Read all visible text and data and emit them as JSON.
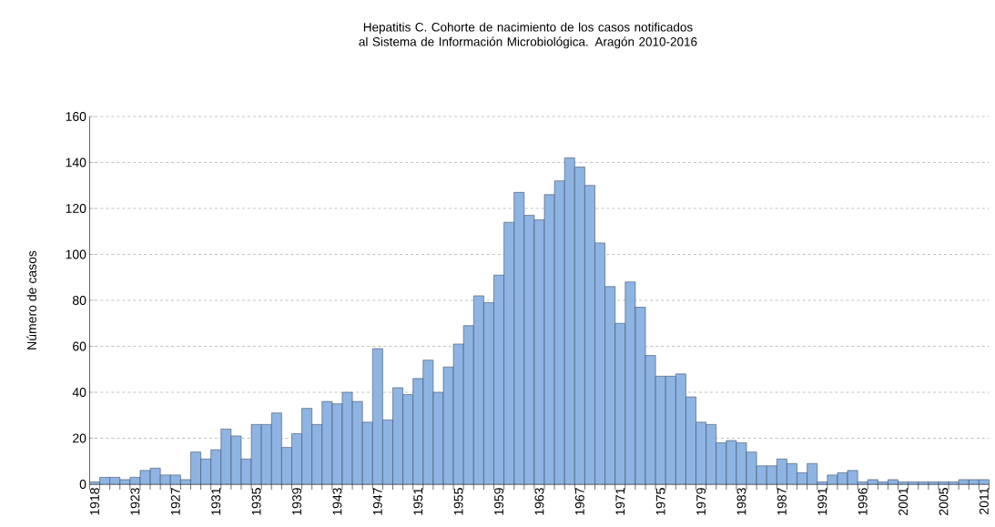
{
  "chart_data": {
    "type": "bar",
    "title": "Hepatitis C. Cohorte de nacimiento de los casos notificados al Sistema de Información Microbiológica. Aragón 2010-2016",
    "ylabel": "Número de casos",
    "categories": [
      "1918",
      null,
      null,
      null,
      "1923",
      null,
      null,
      null,
      "1927",
      null,
      null,
      null,
      "1931",
      null,
      null,
      null,
      "1935",
      null,
      null,
      null,
      "1939",
      null,
      null,
      null,
      "1943",
      null,
      null,
      null,
      "1947",
      null,
      null,
      null,
      "1951",
      null,
      null,
      null,
      "1955",
      null,
      null,
      null,
      "1959",
      null,
      null,
      null,
      "1963",
      null,
      null,
      null,
      "1967",
      null,
      null,
      null,
      "1971",
      null,
      null,
      null,
      "1975",
      null,
      null,
      null,
      "1979",
      null,
      null,
      null,
      "1983",
      null,
      null,
      null,
      "1987",
      null,
      null,
      null,
      "1991",
      null,
      null,
      null,
      "1996",
      null,
      null,
      null,
      "2001",
      null,
      null,
      null,
      "2005",
      null,
      null,
      null,
      "2011"
    ],
    "values": [
      1,
      3,
      3,
      2,
      3,
      6,
      7,
      4,
      4,
      2,
      14,
      11,
      15,
      24,
      21,
      11,
      26,
      26,
      31,
      16,
      22,
      33,
      26,
      36,
      35,
      40,
      36,
      27,
      59,
      28,
      42,
      39,
      46,
      54,
      40,
      51,
      61,
      69,
      82,
      79,
      91,
      114,
      127,
      117,
      115,
      126,
      132,
      142,
      138,
      130,
      105,
      86,
      70,
      88,
      77,
      56,
      47,
      47,
      48,
      38,
      27,
      26,
      18,
      19,
      18,
      14,
      8,
      8,
      11,
      9,
      5,
      9,
      1,
      4,
      5,
      6,
      1,
      2,
      1,
      2,
      1,
      1,
      1,
      1,
      1,
      1,
      2,
      2,
      2
    ],
    "color": "#8eb4e3",
    "ylim": [
      0,
      160
    ],
    "yticks": [
      0,
      20,
      40,
      60,
      80,
      100,
      120,
      140,
      160
    ],
    "grid": "y"
  }
}
